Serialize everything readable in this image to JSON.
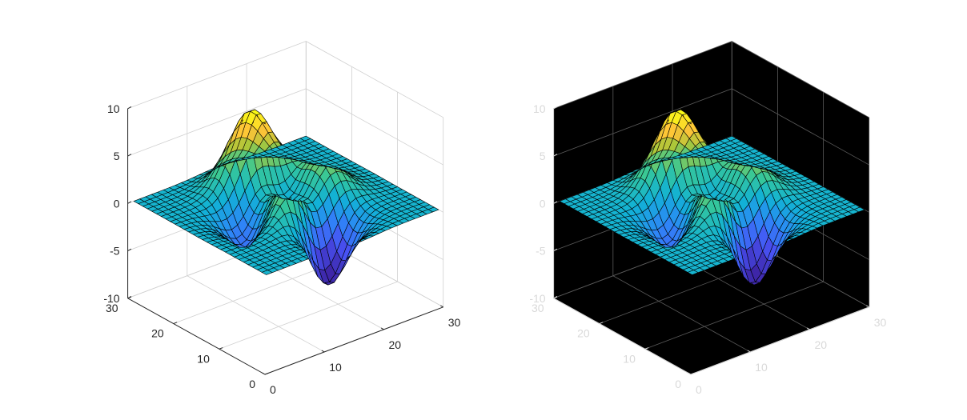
{
  "figure": {
    "background": "#ffffff"
  },
  "chart_data": [
    {
      "type": "surface",
      "function": "peaks(30)",
      "title": "",
      "xlabel": "",
      "ylabel": "",
      "zlabel": "",
      "x_ticks": [
        "0",
        "10",
        "20",
        "30"
      ],
      "y_ticks": [
        "0",
        "10",
        "20",
        "30"
      ],
      "z_ticks": [
        "-10",
        "-5",
        "0",
        "5",
        "10"
      ],
      "xlim": [
        0,
        30
      ],
      "ylim": [
        0,
        30
      ],
      "zlim": [
        -10,
        10
      ],
      "view": "3-D default",
      "grid": true,
      "colormap": "parula",
      "edge_color": "#000000",
      "axes_color": "#ffffff",
      "grid_color": "#d0d0d0",
      "tick_color": "#262626"
    },
    {
      "type": "surface",
      "function": "peaks(30)",
      "title": "",
      "xlabel": "",
      "ylabel": "",
      "zlabel": "",
      "x_ticks": [
        "0",
        "10",
        "20",
        "30"
      ],
      "y_ticks": [
        "0",
        "10",
        "20",
        "30"
      ],
      "z_ticks": [
        "-10",
        "-5",
        "0",
        "5",
        "10"
      ],
      "xlim": [
        0,
        30
      ],
      "ylim": [
        0,
        30
      ],
      "zlim": [
        -10,
        10
      ],
      "view": "3-D default",
      "grid": true,
      "colormap": "parula",
      "edge_color": "#000000",
      "axes_color": "#000000",
      "grid_color": "#5a5a5a",
      "tick_color": "#d9d9d9"
    }
  ]
}
